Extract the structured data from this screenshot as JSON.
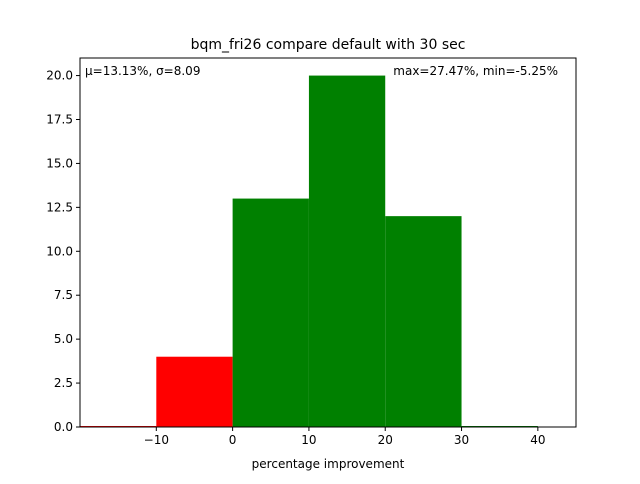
{
  "chart_data": {
    "type": "bar",
    "title": "bqm_fri26 compare default with 30 sec",
    "xlabel": "percentage improvement",
    "ylabel": "",
    "xlim": [
      -20,
      45
    ],
    "ylim": [
      0,
      21
    ],
    "x_ticks": [
      -10,
      0,
      10,
      20,
      30,
      40
    ],
    "y_ticks": [
      0.0,
      2.5,
      5.0,
      7.5,
      10.0,
      12.5,
      15.0,
      17.5,
      20.0
    ],
    "bins": [
      {
        "start": -20,
        "end": -10,
        "count": 0,
        "color": "#ff0000"
      },
      {
        "start": -10,
        "end": 0,
        "count": 4,
        "color": "#ff0000"
      },
      {
        "start": 0,
        "end": 10,
        "count": 13,
        "color": "#008000"
      },
      {
        "start": 10,
        "end": 20,
        "count": 20,
        "color": "#008000"
      },
      {
        "start": 20,
        "end": 30,
        "count": 12,
        "color": "#008000"
      },
      {
        "start": 30,
        "end": 40,
        "count": 0,
        "color": "#008000"
      }
    ],
    "annotations": {
      "stats_left": "μ=13.13%, σ=8.09",
      "stats_right": "max=27.47%, min=-5.25%"
    },
    "grid": false,
    "legend": "none"
  }
}
